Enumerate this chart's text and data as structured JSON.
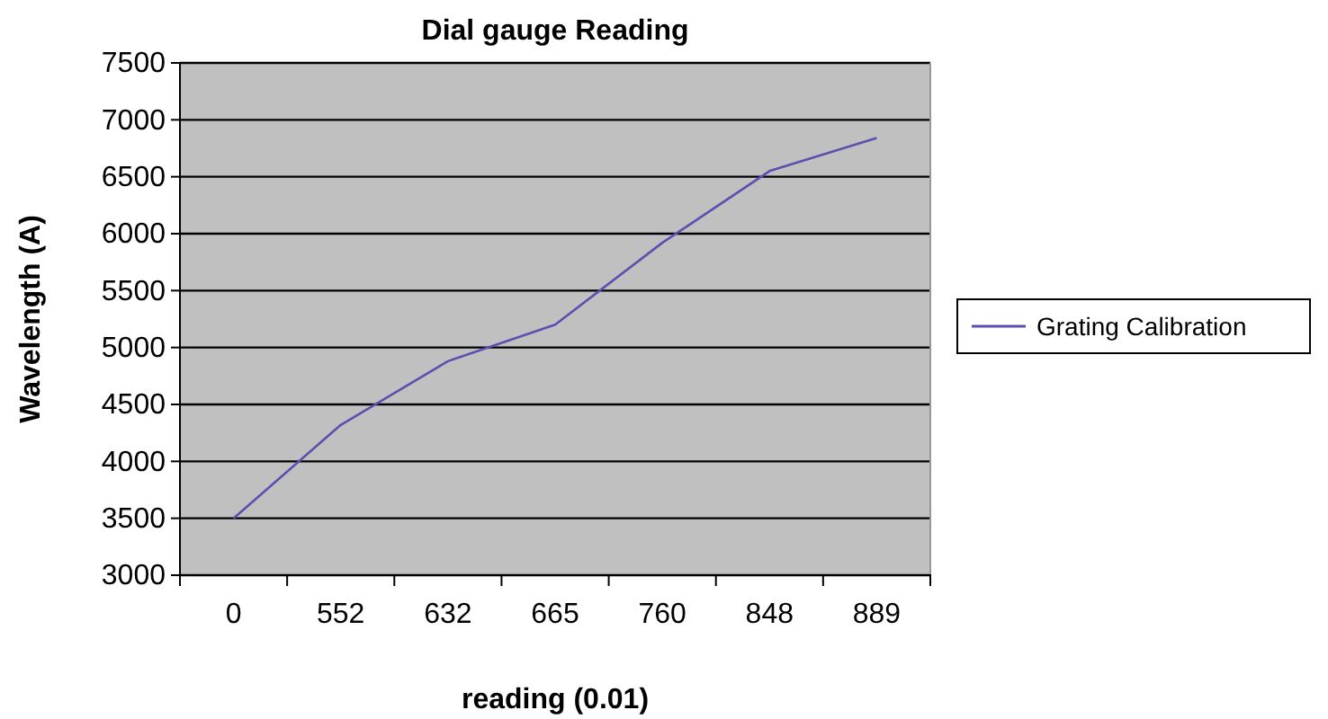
{
  "chart_data": {
    "type": "line",
    "title": "Dial gauge Reading",
    "xlabel": "reading (0.01)",
    "ylabel": "Wavelength (A)",
    "categories": [
      "0",
      "552",
      "632",
      "665",
      "760",
      "848",
      "889"
    ],
    "series": [
      {
        "name": "Grating Calibration",
        "color": "#5a50b0",
        "values": [
          3500,
          4320,
          4880,
          5200,
          5920,
          6550,
          6840
        ]
      }
    ],
    "ylim": [
      3000,
      7500
    ],
    "yticks": [
      3000,
      3500,
      4000,
      4500,
      5000,
      5500,
      6000,
      6500,
      7000,
      7500
    ],
    "grid": "y",
    "legend": "right"
  }
}
